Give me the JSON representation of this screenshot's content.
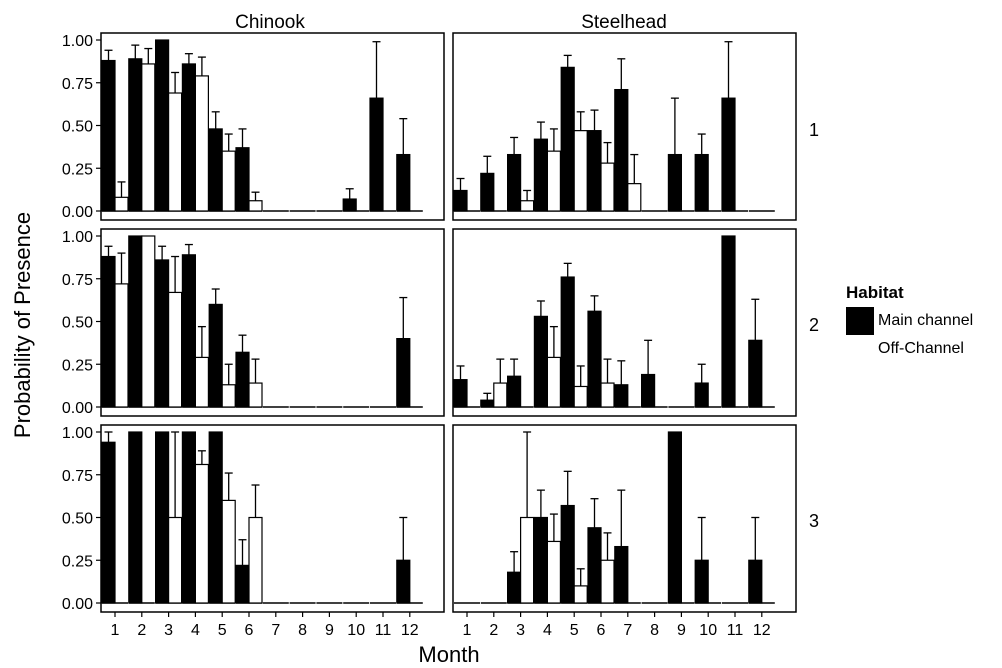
{
  "chart_data": {
    "type": "bar",
    "xlabel": "Month",
    "ylabel": "Probability of Presence",
    "categories": [
      "1",
      "2",
      "3",
      "4",
      "5",
      "6",
      "7",
      "8",
      "9",
      "10",
      "11",
      "12"
    ],
    "ylim": [
      0,
      1
    ],
    "yticks": [
      "0.00",
      "0.25",
      "0.50",
      "0.75",
      "1.00"
    ],
    "columns": [
      "Chinook",
      "Steelhead"
    ],
    "rows": [
      "1",
      "2",
      "3"
    ],
    "legend": {
      "title": "Habitat",
      "entries": [
        {
          "name": "Main channel",
          "color": "#000000"
        },
        {
          "name": "Off-Channel",
          "color": "#ffffff"
        }
      ],
      "position": "right"
    },
    "panels": [
      {
        "species": "Chinook",
        "row": "1",
        "main": [
          0.88,
          0.89,
          1.0,
          0.86,
          0.48,
          0.37,
          0,
          0,
          0,
          0.07,
          0.66,
          0.33
        ],
        "main_err": [
          0.06,
          0.08,
          0,
          0.06,
          0.1,
          0.11,
          0,
          0,
          0,
          0.06,
          0.33,
          0.21
        ],
        "off": [
          0.08,
          0.86,
          0.69,
          0.79,
          0.35,
          0.06,
          0,
          0,
          0,
          0,
          0,
          0
        ],
        "off_err": [
          0.09,
          0.09,
          0.12,
          0.11,
          0.1,
          0.05,
          0,
          0,
          0,
          0,
          0,
          0
        ]
      },
      {
        "species": "Steelhead",
        "row": "1",
        "main": [
          0.12,
          0.22,
          0.33,
          0.42,
          0.84,
          0.47,
          0.71,
          0,
          0.33,
          0.33,
          0.66,
          0
        ],
        "main_err": [
          0.07,
          0.1,
          0.1,
          0.1,
          0.07,
          0.12,
          0.18,
          0,
          0.33,
          0.12,
          0.33,
          0
        ],
        "off": [
          0,
          0,
          0.06,
          0.35,
          0.47,
          0.28,
          0.16,
          0,
          0,
          0,
          0,
          0
        ],
        "off_err": [
          0,
          0,
          0.06,
          0.13,
          0.11,
          0.12,
          0.17,
          0,
          0,
          0,
          0,
          0
        ]
      },
      {
        "species": "Chinook",
        "row": "2",
        "main": [
          0.88,
          1.0,
          0.86,
          0.89,
          0.6,
          0.32,
          0,
          0,
          0,
          0,
          0,
          0.4
        ],
        "main_err": [
          0.06,
          0,
          0.08,
          0.06,
          0.09,
          0.1,
          0,
          0,
          0,
          0,
          0,
          0.24
        ],
        "off": [
          0.72,
          1.0,
          0.67,
          0.29,
          0.13,
          0.14,
          0,
          0,
          0,
          0,
          0,
          0
        ],
        "off_err": [
          0.18,
          0,
          0.21,
          0.18,
          0.12,
          0.14,
          0,
          0,
          0,
          0,
          0,
          0
        ]
      },
      {
        "species": "Steelhead",
        "row": "2",
        "main": [
          0.16,
          0.04,
          0.18,
          0.53,
          0.76,
          0.56,
          0.13,
          0.19,
          0,
          0.14,
          1.0,
          0.39
        ],
        "main_err": [
          0.08,
          0.04,
          0.1,
          0.09,
          0.08,
          0.09,
          0.14,
          0.2,
          0,
          0.11,
          0,
          0.24
        ],
        "off": [
          0,
          0.14,
          0,
          0.29,
          0.12,
          0.14,
          0,
          0,
          0,
          0,
          0,
          0
        ],
        "off_err": [
          0,
          0.14,
          0,
          0.18,
          0.12,
          0.14,
          0,
          0,
          0,
          0,
          0,
          0
        ]
      },
      {
        "species": "Chinook",
        "row": "3",
        "main": [
          0.94,
          1.0,
          1.0,
          1.0,
          1.0,
          0.22,
          0,
          0,
          0,
          0,
          0,
          0.25
        ],
        "main_err": [
          0.06,
          0,
          0,
          0,
          0,
          0.15,
          0,
          0,
          0,
          0,
          0,
          0.25
        ],
        "off": [
          0,
          0,
          0.5,
          0.81,
          0.6,
          0.5,
          0,
          0,
          0,
          0,
          0,
          0
        ],
        "off_err": [
          0,
          0,
          0.5,
          0.08,
          0.16,
          0.19,
          0,
          0,
          0,
          0,
          0,
          0
        ]
      },
      {
        "species": "Steelhead",
        "row": "3",
        "main": [
          0,
          0,
          0.18,
          0.5,
          0.57,
          0.44,
          0.33,
          0,
          1.0,
          0.25,
          0,
          0.25
        ],
        "main_err": [
          0,
          0,
          0.12,
          0.16,
          0.2,
          0.17,
          0.33,
          0,
          0,
          0.25,
          0,
          0.25
        ],
        "off": [
          0,
          0,
          0.5,
          0.36,
          0.1,
          0.25,
          0,
          0,
          0,
          0,
          0,
          0
        ],
        "off_err": [
          0,
          0,
          0.5,
          0.16,
          0.1,
          0.16,
          0,
          0,
          0,
          0,
          0,
          0
        ]
      }
    ]
  }
}
